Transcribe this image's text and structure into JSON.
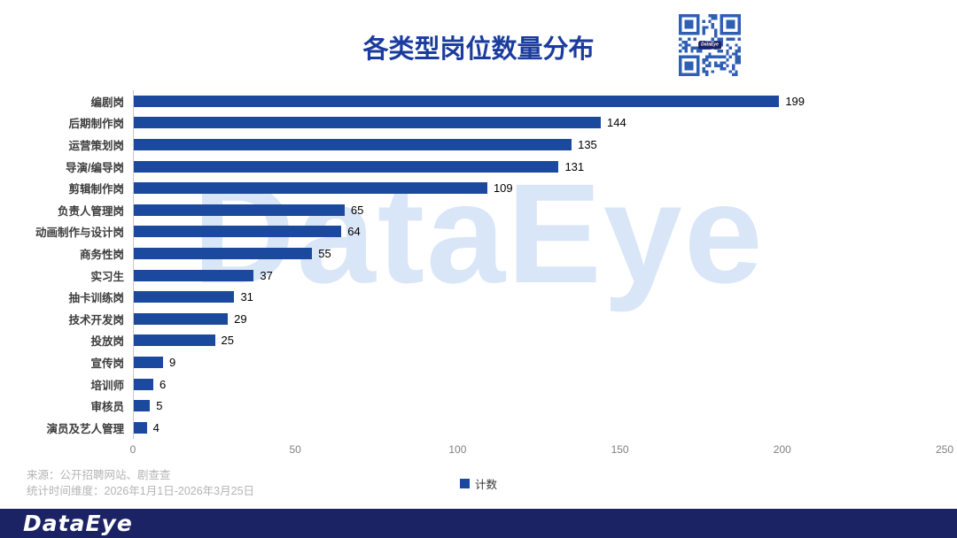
{
  "title": "各类型岗位数量分布",
  "watermark": "DataEye",
  "chart_data": {
    "type": "bar",
    "orientation": "horizontal",
    "title": "各类型岗位数量分布",
    "categories": [
      "编剧岗",
      "后期制作岗",
      "运营策划岗",
      "导演/编导岗",
      "剪辑制作岗",
      "负责人管理岗",
      "动画制作与设计岗",
      "商务性岗",
      "实习生",
      "抽卡训练岗",
      "技术开发岗",
      "投放岗",
      "宣传岗",
      "培训师",
      "审核员",
      "演员及艺人管理"
    ],
    "values": [
      199,
      144,
      135,
      131,
      109,
      65,
      64,
      55,
      37,
      31,
      29,
      25,
      9,
      6,
      5,
      4
    ],
    "xlabel": "",
    "ylabel": "",
    "xlim": [
      0,
      250
    ],
    "xticks": [
      0,
      50,
      100,
      150,
      200,
      250
    ],
    "grid": false,
    "bar_color": "#1b499d",
    "legend": [
      {
        "label": "计数",
        "color": "#1b499d"
      }
    ],
    "legend_position": "bottom-center"
  },
  "source": {
    "line1": "来源：公开招聘网站、剧查查",
    "line2": "统计时间维度：2026年1月1日-2026年3月25日"
  },
  "footer": {
    "brand": "DataEye"
  },
  "qr": {
    "label": "DataEye"
  },
  "colors": {
    "bar": "#1b499d",
    "title": "#1b3c9e",
    "qr": "#2f5fb3",
    "footer_bg": "#1b2364",
    "watermark": "#d9e6f7",
    "axis_text": "#808080",
    "source_text": "#b4b4b4"
  }
}
